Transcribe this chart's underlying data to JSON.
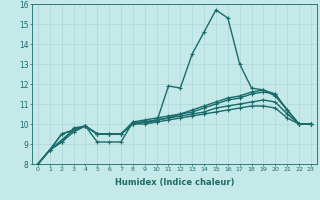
{
  "xlabel": "Humidex (Indice chaleur)",
  "xlim": [
    -0.5,
    23.5
  ],
  "ylim": [
    8,
    16
  ],
  "xticks": [
    0,
    1,
    2,
    3,
    4,
    5,
    6,
    7,
    8,
    9,
    10,
    11,
    12,
    13,
    14,
    15,
    16,
    17,
    18,
    19,
    20,
    21,
    22,
    23
  ],
  "yticks": [
    8,
    9,
    10,
    11,
    12,
    13,
    14,
    15,
    16
  ],
  "background_color": "#c5e8e8",
  "line_color": "#1a6b6b",
  "grid_color": "#afd8d8",
  "lines": [
    [
      8.0,
      8.7,
      9.1,
      9.8,
      9.9,
      9.1,
      9.1,
      9.1,
      10.1,
      10.1,
      10.1,
      11.9,
      11.8,
      13.5,
      14.6,
      15.7,
      15.3,
      13.0,
      11.8,
      11.7,
      11.4,
      10.7,
      10.0,
      10.0
    ],
    [
      8.0,
      8.7,
      9.1,
      9.6,
      9.9,
      9.5,
      9.5,
      9.5,
      10.0,
      10.1,
      10.2,
      10.3,
      10.5,
      10.7,
      10.9,
      11.1,
      11.3,
      11.4,
      11.6,
      11.7,
      11.5,
      10.7,
      10.0,
      10.0
    ],
    [
      8.0,
      8.7,
      9.2,
      9.7,
      9.9,
      9.5,
      9.5,
      9.5,
      10.1,
      10.2,
      10.3,
      10.4,
      10.5,
      10.6,
      10.8,
      11.0,
      11.2,
      11.3,
      11.5,
      11.6,
      11.5,
      10.7,
      10.0,
      10.0
    ],
    [
      8.0,
      8.7,
      9.5,
      9.7,
      9.9,
      9.5,
      9.5,
      9.5,
      10.0,
      10.1,
      10.2,
      10.3,
      10.4,
      10.5,
      10.6,
      10.8,
      10.9,
      11.0,
      11.1,
      11.2,
      11.1,
      10.5,
      10.0,
      10.0
    ],
    [
      8.0,
      8.7,
      9.5,
      9.7,
      9.9,
      9.5,
      9.5,
      9.5,
      10.0,
      10.0,
      10.1,
      10.2,
      10.3,
      10.4,
      10.5,
      10.6,
      10.7,
      10.8,
      10.9,
      10.9,
      10.8,
      10.3,
      10.0,
      10.0
    ]
  ],
  "markers": [
    "+",
    "+",
    "+",
    "+",
    "+"
  ]
}
